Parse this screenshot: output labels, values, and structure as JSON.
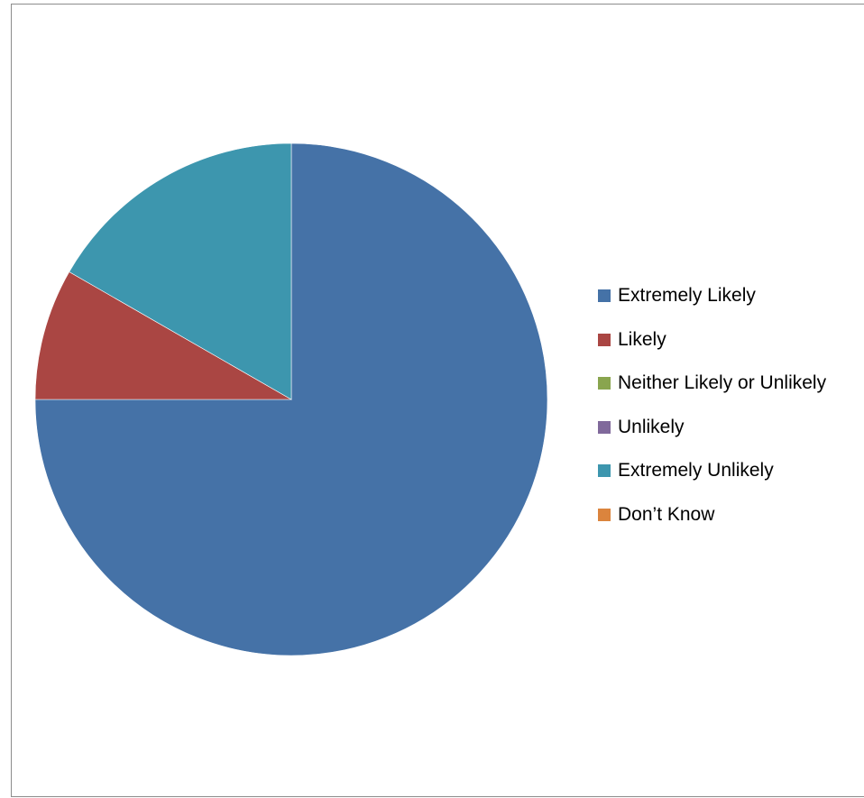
{
  "chart_data": {
    "type": "pie",
    "title": "",
    "categories": [
      "Extremely Likely",
      "Likely",
      "Neither Likely or Unlikely",
      "Unlikely",
      "Extremely Unlikely",
      "Don’t Know"
    ],
    "values": [
      75,
      8.3,
      0,
      0,
      16.7,
      0
    ],
    "colors": [
      "#4572A7",
      "#AA4643",
      "#89A54E",
      "#80699B",
      "#3D96AE",
      "#DB843D"
    ],
    "start_angle_deg": 0,
    "direction": "clockwise",
    "legend_position": "right"
  }
}
